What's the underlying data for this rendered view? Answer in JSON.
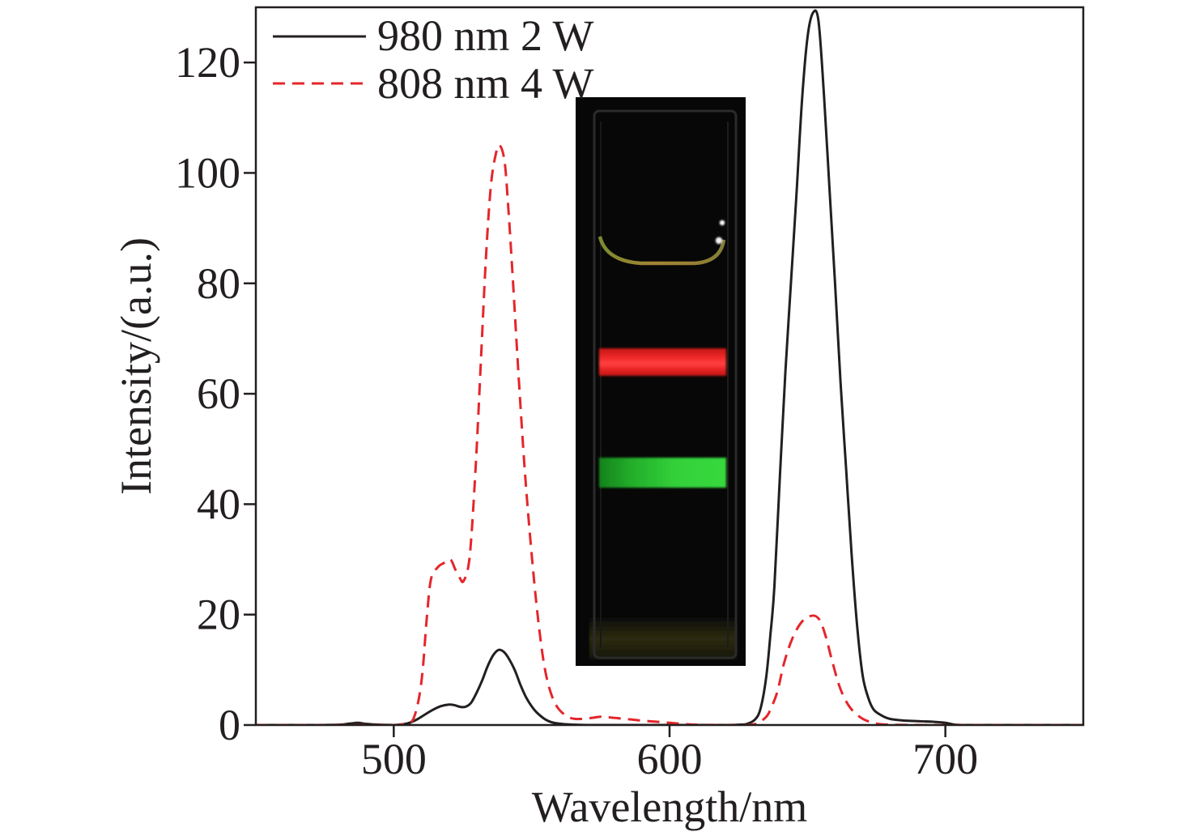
{
  "chart_data": {
    "type": "line",
    "title": "",
    "xlabel": "Wavelength/nm",
    "ylabel": "Intensity/(a.u.)",
    "xlim": [
      450,
      750
    ],
    "ylim": [
      0,
      130
    ],
    "xticks": [
      500,
      600,
      700
    ],
    "yticks": [
      0,
      20,
      40,
      60,
      80,
      100,
      120
    ],
    "grid": false,
    "legend_position": "top-left",
    "series": [
      {
        "name": "980 nm 2 W",
        "color": "#231f20",
        "dashed": false,
        "x": [
          450,
          460,
          470,
          480,
          484,
          487,
          490,
          495,
          500,
          505,
          508,
          511,
          514,
          517,
          520,
          522,
          524,
          526,
          528,
          530,
          532,
          534,
          536,
          538,
          540,
          542,
          544,
          546,
          548,
          550,
          552,
          555,
          558,
          562,
          566,
          570,
          580,
          590,
          600,
          610,
          620,
          625,
          628,
          631,
          633,
          635,
          636.5,
          638,
          640,
          642,
          644,
          646,
          648,
          650,
          652,
          654,
          656,
          658,
          660,
          662,
          664,
          666,
          668,
          670,
          672,
          674,
          677,
          680,
          685,
          690,
          695,
          700,
          703,
          706,
          710,
          720,
          730,
          740,
          750
        ],
        "y": [
          0,
          0,
          0,
          0.05,
          0.25,
          0.4,
          0.2,
          0.05,
          0,
          0.3,
          0.9,
          1.8,
          2.7,
          3.4,
          3.7,
          3.6,
          3.3,
          3.3,
          4.0,
          5.8,
          8.0,
          10.6,
          12.6,
          13.6,
          13.2,
          11.8,
          9.8,
          7.2,
          5.0,
          3.4,
          2.2,
          1.0,
          0.4,
          0.15,
          0.05,
          0,
          0,
          0,
          0,
          0,
          0,
          0.05,
          0.2,
          1.0,
          3.0,
          8.5,
          16,
          25,
          45,
          64,
          80,
          96,
          113,
          124.5,
          129,
          127.5,
          114,
          97,
          80,
          62,
          46.5,
          31,
          18,
          9,
          5,
          2.8,
          1.7,
          1.1,
          0.8,
          0.7,
          0.6,
          0.4,
          0.1,
          0,
          0,
          0,
          0,
          0,
          0
        ]
      },
      {
        "name": "808 nm 4 W",
        "color": "#e4262b",
        "dashed": true,
        "x": [
          450,
          460,
          470,
          480,
          490,
          500,
          503,
          505,
          507,
          509,
          510.5,
          512,
          513.5,
          516,
          518,
          520.5,
          522.3,
          524,
          525.2,
          527,
          528.2,
          530,
          531.7,
          533.4,
          535.2,
          537,
          538.4,
          540.2,
          541.6,
          543.1,
          545.2,
          547.5,
          549.9,
          552.2,
          554.5,
          556.9,
          559.8,
          564,
          568,
          572,
          575,
          578,
          582,
          586,
          590,
          595,
          600,
          605,
          610,
          620,
          628,
          632,
          634,
          636,
          639,
          641.4,
          644.3,
          647.8,
          651.6,
          654.3,
          656.6,
          658.9,
          661.9,
          665.4,
          669.8,
          674,
          678,
          690,
          700,
          720,
          750
        ],
        "y": [
          0,
          0,
          0,
          0,
          0,
          0,
          0.1,
          0.4,
          1.0,
          4.5,
          10,
          19.5,
          26.4,
          28.6,
          29.3,
          30,
          28.2,
          26.6,
          26,
          28.6,
          34.5,
          49.5,
          67,
          84.4,
          97.6,
          103.4,
          105,
          102,
          93.2,
          81.4,
          63.8,
          46.2,
          31.5,
          19.8,
          11,
          5.9,
          2.9,
          1.3,
          1.1,
          1.3,
          1.5,
          1.4,
          1.2,
          1.0,
          0.8,
          0.6,
          0.4,
          0.2,
          0.05,
          0,
          0,
          0.3,
          1.0,
          2.2,
          5.9,
          11,
          15.4,
          18.6,
          19.8,
          19.1,
          16.1,
          11.7,
          6.6,
          3.2,
          1.2,
          0.4,
          0.1,
          0,
          0,
          0,
          0
        ]
      }
    ]
  }
}
